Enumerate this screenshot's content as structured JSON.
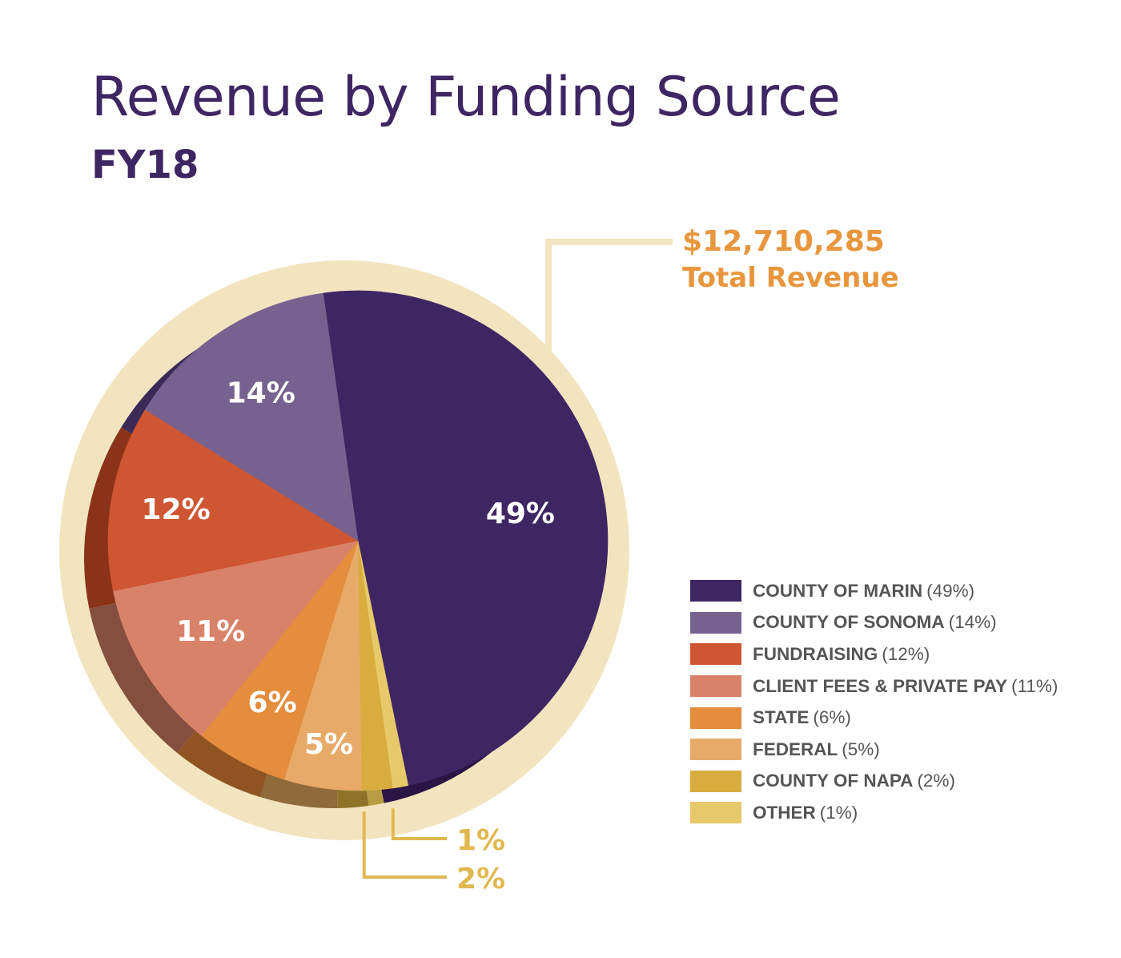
{
  "chart_data": {
    "type": "pie",
    "title": "Revenue by Funding Source",
    "subtitle": "FY18",
    "total": {
      "amount": "$12,710,285",
      "label": "Total Revenue"
    },
    "slices": [
      {
        "name": "COUNTY OF MARIN",
        "legend_pct": "(49%)",
        "value": 49,
        "label": "49%",
        "color": "#3e2663",
        "side_color": "#2a1545"
      },
      {
        "name": "OTHER",
        "legend_pct": "(1%)",
        "value": 1,
        "label": "1%",
        "color": "#e8c96a",
        "side_color": "#b89d45"
      },
      {
        "name": "COUNTY OF NAPA",
        "legend_pct": "(2%)",
        "value": 2,
        "label": "2%",
        "color": "#d8ac3f",
        "side_color": "#8e7429"
      },
      {
        "name": "FEDERAL",
        "legend_pct": "(5%)",
        "value": 5,
        "label": "5%",
        "color": "#e8aa68",
        "side_color": "#8f6a3b"
      },
      {
        "name": "STATE",
        "legend_pct": "(6%)",
        "value": 6,
        "label": "6%",
        "color": "#e38d3d",
        "side_color": "#8f5421"
      },
      {
        "name": "CLIENT FEES & PRIVATE PAY",
        "legend_pct": "(11%)",
        "value": 11,
        "label": "11%",
        "color": "#d9826a",
        "side_color": "#854f40"
      },
      {
        "name": "FUNDRAISING",
        "legend_pct": "(12%)",
        "value": 12,
        "label": "12%",
        "color": "#cf5632",
        "side_color": "#8a3318"
      },
      {
        "name": "COUNTY OF SONOMA",
        "legend_pct": "(14%)",
        "value": 14,
        "label": "14%",
        "color": "#77628f",
        "side_color": "#3a2a55"
      }
    ],
    "legend_order": [
      "COUNTY OF MARIN",
      "COUNTY OF SONOMA",
      "FUNDRAISING",
      "CLIENT FEES & PRIVATE PAY",
      "STATE",
      "FEDERAL",
      "COUNTY OF NAPA",
      "OTHER"
    ],
    "legend_position": "right",
    "ring_color": "#f3e4c0",
    "text_color": "#3e2663",
    "accent_color": "#e8963d",
    "callout_color": "#e0b84f"
  }
}
